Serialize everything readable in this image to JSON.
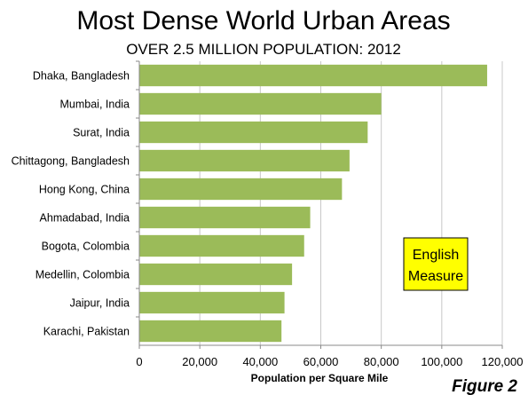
{
  "chart_data": {
    "type": "bar",
    "orientation": "horizontal",
    "title": "Most Dense World Urban Areas",
    "subtitle": "OVER 2.5 MILLION POPULATION: 2012",
    "xlabel": "Population per Square Mile",
    "ylabel": "",
    "categories": [
      "Dhaka, Bangladesh",
      "Mumbai, India",
      "Surat, India",
      "Chittagong, Bangladesh",
      "Hong Kong, China",
      "Ahmadabad, India",
      "Bogota, Colombia",
      "Medellin, Colombia",
      "Jaipur, India",
      "Karachi, Pakistan"
    ],
    "values": [
      115000,
      80000,
      75500,
      69500,
      67000,
      56500,
      54500,
      50500,
      48000,
      47000
    ],
    "xlim": [
      0,
      120000
    ],
    "x_ticks": [
      0,
      20000,
      40000,
      60000,
      80000,
      100000,
      120000
    ],
    "x_tick_labels": [
      "0",
      "20,000",
      "40,000",
      "60,000",
      "80,000",
      "100,000",
      "120,000"
    ],
    "grid": "vertical",
    "bar_color": "#9BBB59",
    "grid_color": "#c8c8c8",
    "annotations": [
      {
        "lines": [
          "English",
          "Measure"
        ],
        "background": "#FFFF00",
        "border": "#000000"
      }
    ],
    "figure_label": "Figure 2"
  }
}
